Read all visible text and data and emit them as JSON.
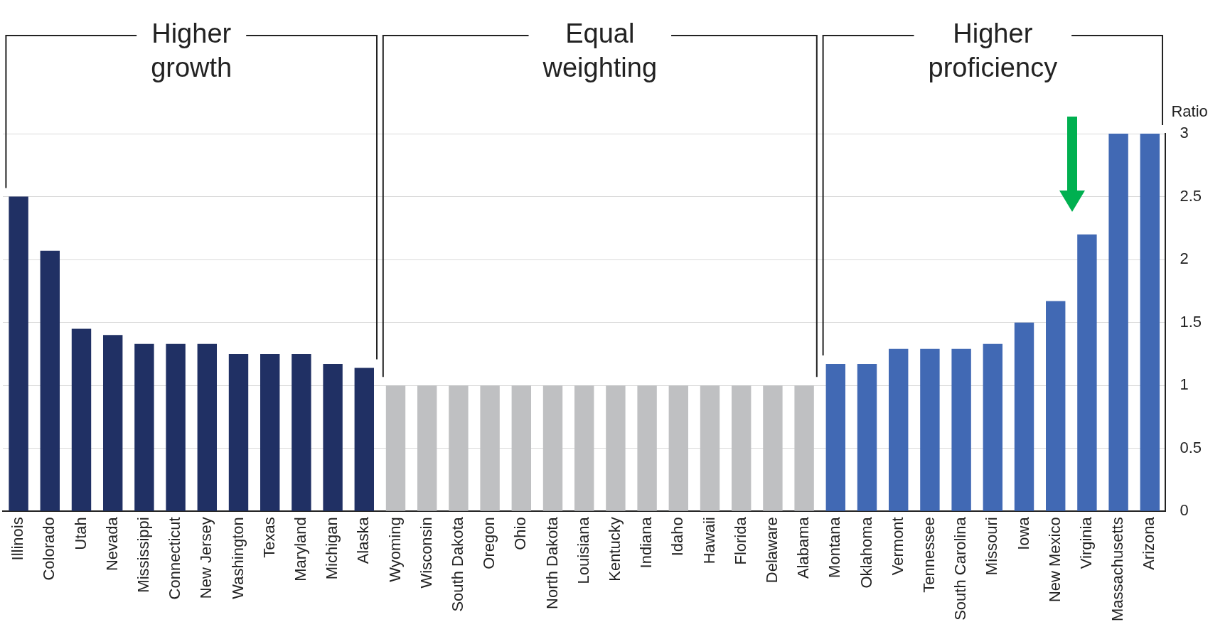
{
  "chart_data": {
    "type": "bar",
    "ylabel": "Ratio",
    "categories": [
      "Illinois",
      "Colorado",
      "Utah",
      "Nevada",
      "Mississippi",
      "Connecticut",
      "New Jersey",
      "Washington",
      "Texas",
      "Maryland",
      "Michigan",
      "Alaska",
      "Wyoming",
      "Wisconsin",
      "South Dakota",
      "Oregon",
      "Ohio",
      "North Dakota",
      "Louisiana",
      "Kentucky",
      "Indiana",
      "Idaho",
      "Hawaii",
      "Florida",
      "Delaware",
      "Alabama",
      "Montana",
      "Oklahoma",
      "Vermont",
      "Tennessee",
      "South Carolina",
      "Missouri",
      "Iowa",
      "New Mexico",
      "Virginia",
      "Massachusetts",
      "Arizona"
    ],
    "values": [
      2.5,
      2.07,
      1.45,
      1.4,
      1.33,
      1.33,
      1.33,
      1.25,
      1.25,
      1.25,
      1.17,
      1.14,
      1,
      1,
      1,
      1,
      1,
      1,
      1,
      1,
      1,
      1,
      1,
      1,
      1,
      1,
      1.17,
      1.17,
      1.29,
      1.29,
      1.29,
      1.33,
      1.5,
      1.67,
      2.2,
      3,
      3
    ],
    "colors": [
      "#203064",
      "#203064",
      "#203064",
      "#203064",
      "#203064",
      "#203064",
      "#203064",
      "#203064",
      "#203064",
      "#203064",
      "#203064",
      "#203064",
      "#bfc0c2",
      "#bfc0c2",
      "#bfc0c2",
      "#bfc0c2",
      "#bfc0c2",
      "#bfc0c2",
      "#bfc0c2",
      "#bfc0c2",
      "#bfc0c2",
      "#bfc0c2",
      "#bfc0c2",
      "#bfc0c2",
      "#bfc0c2",
      "#bfc0c2",
      "#4169b4",
      "#4169b4",
      "#4169b4",
      "#4169b4",
      "#4169b4",
      "#4169b4",
      "#4169b4",
      "#4169b4",
      "#4169b4",
      "#4169b4",
      "#4169b4"
    ],
    "ylim": [
      0,
      3
    ],
    "yticks": [
      0,
      0.5,
      1,
      1.5,
      2,
      2.5,
      3
    ],
    "grid": "y",
    "legend": false,
    "annotations": [
      "Higher\ngrowth",
      "Equal\nweighting",
      "Higher\nproficiency"
    ]
  }
}
